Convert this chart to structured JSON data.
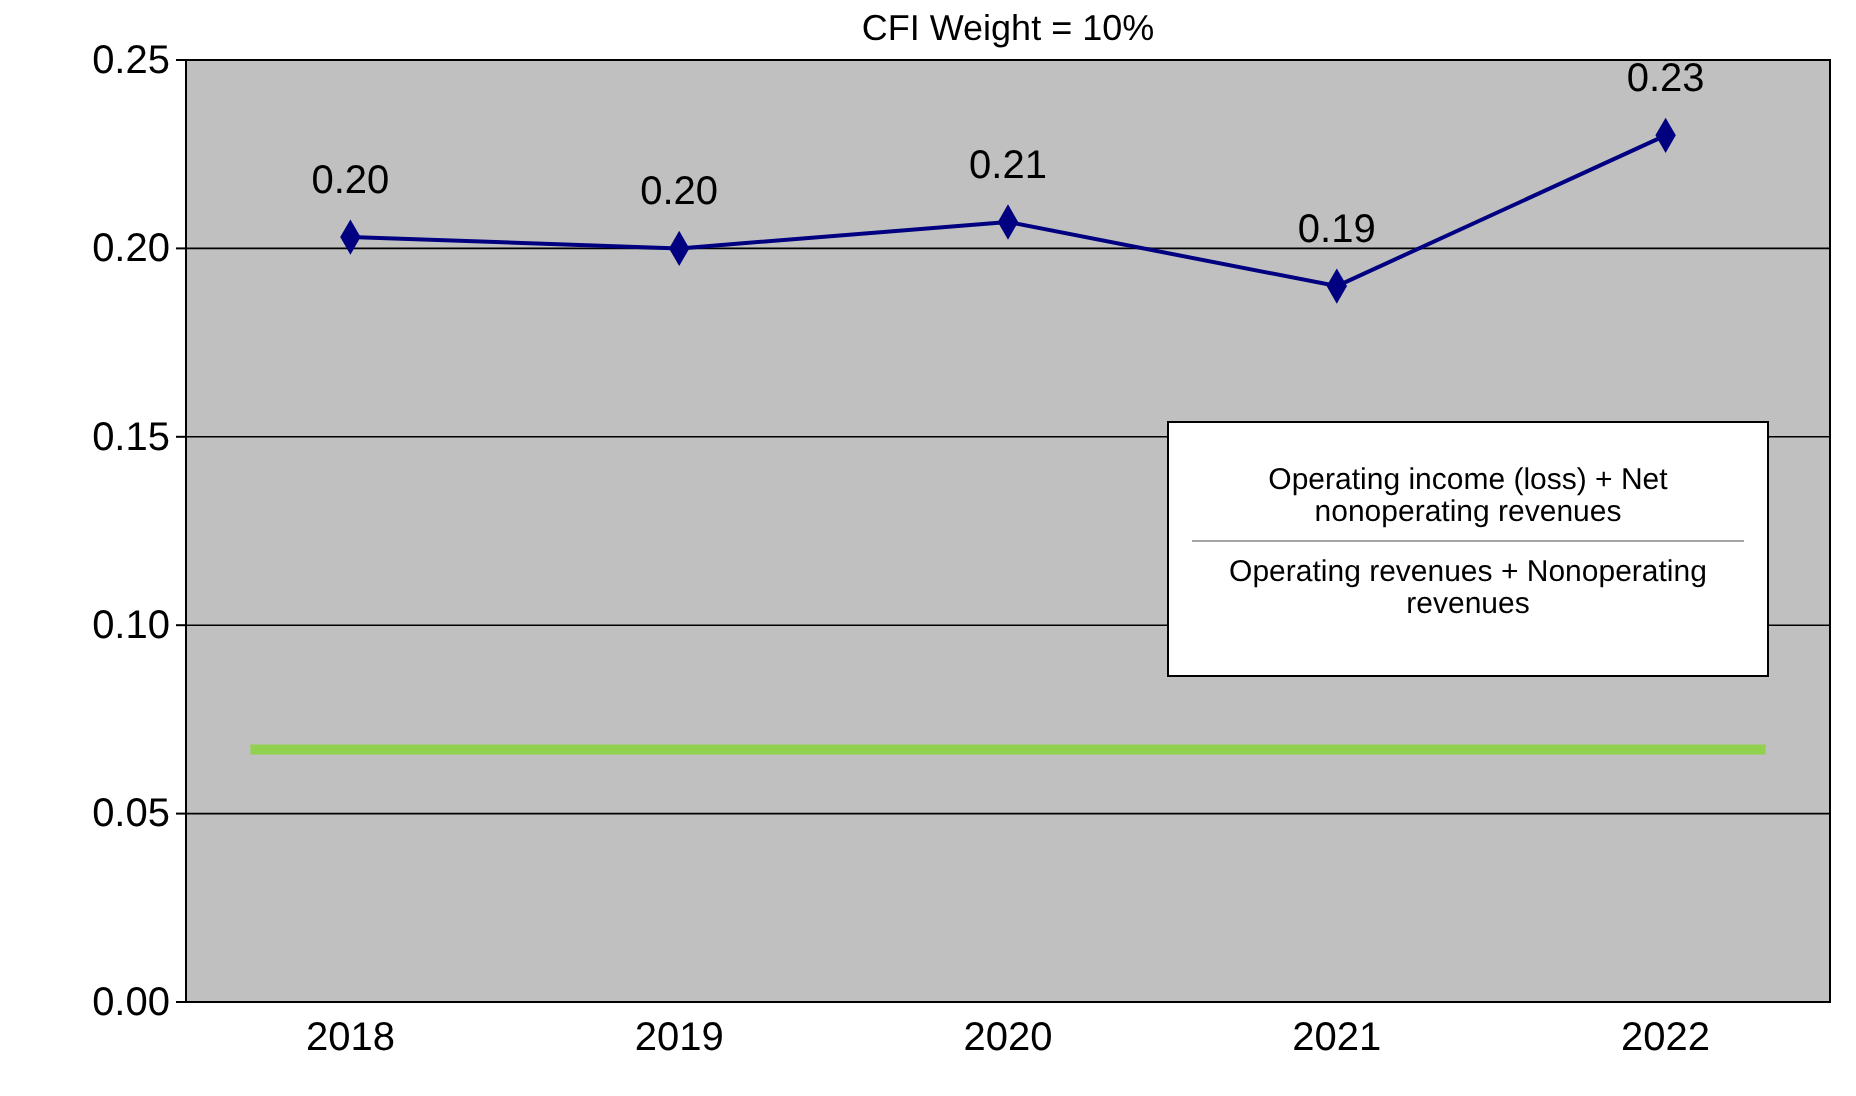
{
  "chart_data": {
    "type": "line",
    "title": "CFI Weight = 10%",
    "categories": [
      "2018",
      "2019",
      "2020",
      "2021",
      "2022"
    ],
    "series": [
      {
        "color": "#000080",
        "values": [
          0.203,
          0.2,
          0.207,
          0.19,
          0.23
        ],
        "value_labels": [
          "0.20",
          "0.20",
          "0.21",
          "0.19",
          "0.23"
        ]
      }
    ],
    "ylim": [
      0,
      0.25
    ],
    "yticks": [
      "0.00",
      "0.05",
      "0.10",
      "0.15",
      "0.20",
      "0.25"
    ],
    "grid": "y",
    "marker": "diamond",
    "line_style": "solid",
    "ref_lines": [
      {
        "axis": "y",
        "value": 0.067,
        "color": "#92d050"
      }
    ],
    "annotations": [
      "Operating income (loss) + Net nonoperating revenues",
      "Operating revenues + Nonoperating revenues"
    ]
  }
}
